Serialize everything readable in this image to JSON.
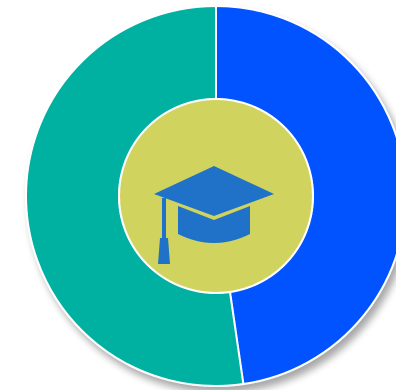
{
  "chart_data": {
    "type": "pie",
    "style": "donut",
    "legend": "none",
    "slices": [
      {
        "value": 0.477,
        "color": "#0353ff"
      },
      {
        "value": 0.523,
        "color": "#00b0a1"
      }
    ],
    "center": {
      "color": "#d1d35f",
      "icon": "graduation-cap-icon",
      "icon_color": "#1f72c8"
    }
  }
}
